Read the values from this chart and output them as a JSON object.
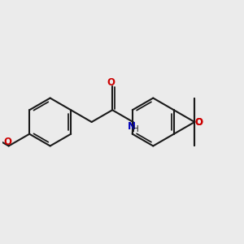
{
  "background_color": "#ebebeb",
  "bond_color": "#1a1a1a",
  "bond_width": 1.5,
  "atom_colors": {
    "O": "#cc0000",
    "N": "#0000bb",
    "H": "#1a1a1a"
  },
  "figsize": [
    3.0,
    3.0
  ],
  "dpi": 100,
  "xlim": [
    -4.5,
    5.5
  ],
  "ylim": [
    -2.8,
    2.8
  ]
}
